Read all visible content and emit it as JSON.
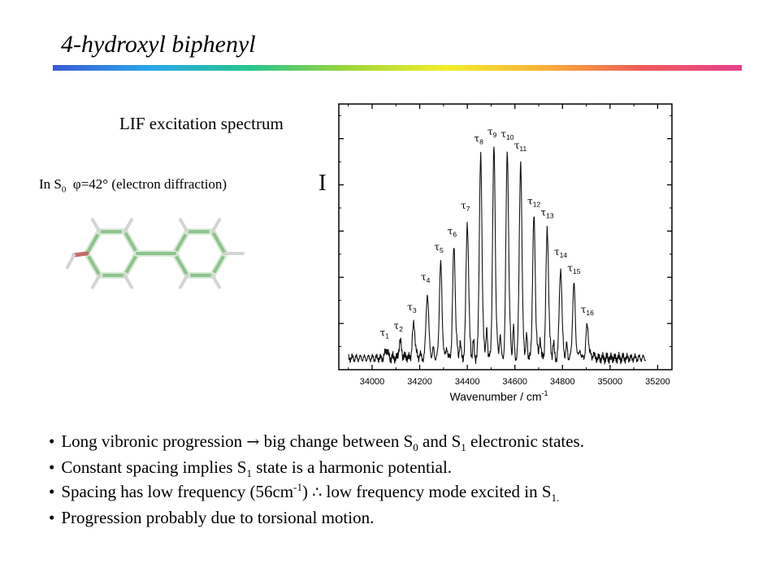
{
  "slide": {
    "title": "4-hydroxyl biphenyl",
    "spectrum_label": "LIF excitation spectrum",
    "s0_line": {
      "prefix": "In S",
      "sub": "0",
      "phi_symbol": "φ",
      "value": "=42°",
      "note": "(electron diffraction)"
    },
    "y_axis_letter": "I",
    "bullets": [
      {
        "parts": [
          {
            "t": "Long vibronic progression "
          },
          {
            "t": "→",
            "kind": "sym"
          },
          {
            "t": " big change between S"
          },
          {
            "t": "0",
            "kind": "sub"
          },
          {
            "t": " and S"
          },
          {
            "t": "1",
            "kind": "sub"
          },
          {
            "t": " electronic states."
          }
        ]
      },
      {
        "parts": [
          {
            "t": "Constant spacing implies S"
          },
          {
            "t": "1",
            "kind": "sub"
          },
          {
            "t": " state is a harmonic potential."
          }
        ]
      },
      {
        "parts": [
          {
            "t": "Spacing has low frequency (56cm"
          },
          {
            "t": "-1",
            "kind": "sup"
          },
          {
            "t": ") "
          },
          {
            "t": "∴",
            "kind": "sym"
          },
          {
            "t": " low frequency mode excited in S"
          },
          {
            "t": "1.",
            "kind": "sub"
          }
        ]
      },
      {
        "parts": [
          {
            "t": "Progression probably due to torsional motion."
          }
        ]
      }
    ],
    "title_rule_colors": [
      "#3a5bd9",
      "#2aa7ea",
      "#27c48f",
      "#9fd53a",
      "#f2ee2a",
      "#f6b03a",
      "#ef5b5b",
      "#e7408c"
    ],
    "molecule": {
      "bond_color": "#8dc38c",
      "hydroxyl_color": "#c36b6b",
      "hydrogen_color": "#d4d4d4"
    }
  },
  "chart_data": {
    "type": "line",
    "xlabel": "Wavenumber / cm",
    "xlabel_sup": "-1",
    "ylabel": "I",
    "xlim": [
      33860,
      35260
    ],
    "ylim": [
      0,
      1.15
    ],
    "x_ticks": [
      34000,
      34200,
      34400,
      34600,
      34800,
      35000,
      35200
    ],
    "x_tick_labels": [
      "34000",
      "34200",
      "34400",
      "34600",
      "34800",
      "35000",
      "35200"
    ],
    "y_ticks": [
      0.2,
      0.4,
      0.6,
      0.8,
      1.0
    ],
    "grid": false,
    "label_symbol": "τ",
    "baseline_range": [
      33900,
      35150
    ],
    "baseline": 0.05,
    "peaks": [
      {
        "label": "1",
        "x": 34060,
        "y": 0.09
      },
      {
        "label": "2",
        "x": 34118,
        "y": 0.12
      },
      {
        "label": "3",
        "x": 34175,
        "y": 0.2
      },
      {
        "label": "4",
        "x": 34232,
        "y": 0.33
      },
      {
        "label": "5",
        "x": 34288,
        "y": 0.46
      },
      {
        "label": "6",
        "x": 34344,
        "y": 0.53
      },
      {
        "label": "7",
        "x": 34400,
        "y": 0.64
      },
      {
        "label": "8",
        "x": 34456,
        "y": 0.93
      },
      {
        "label": "9",
        "x": 34512,
        "y": 0.96
      },
      {
        "label": "10",
        "x": 34568,
        "y": 0.95
      },
      {
        "label": "11",
        "x": 34624,
        "y": 0.9
      },
      {
        "label": "12",
        "x": 34680,
        "y": 0.66
      },
      {
        "label": "13",
        "x": 34736,
        "y": 0.61
      },
      {
        "label": "14",
        "x": 34792,
        "y": 0.44
      },
      {
        "label": "15",
        "x": 34848,
        "y": 0.37
      },
      {
        "label": "16",
        "x": 34904,
        "y": 0.19
      }
    ]
  }
}
